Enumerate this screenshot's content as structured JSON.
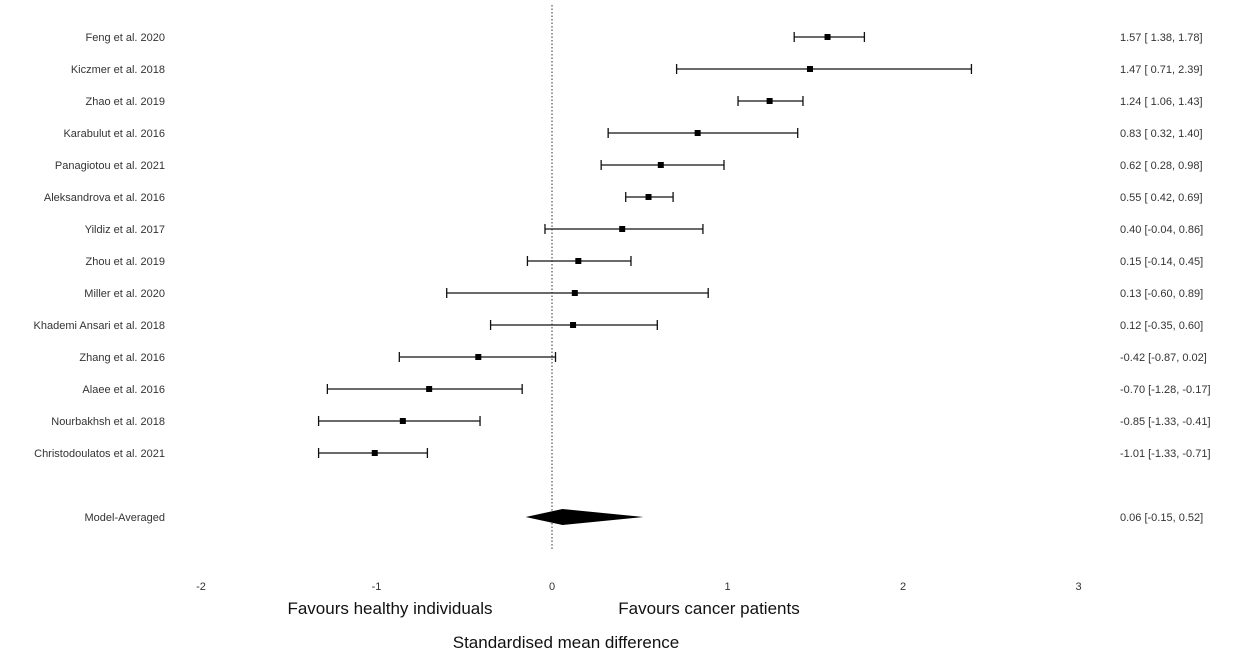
{
  "chart_data": {
    "type": "forest",
    "xlabel": "Standardised mean difference",
    "xlim": [
      -2,
      3
    ],
    "x_ticks": [
      -2,
      -1,
      0,
      1,
      2,
      3
    ],
    "reference_line": 0,
    "favour_left": "Favours healthy individuals",
    "favour_right": "Favours cancer patients",
    "studies": [
      {
        "name": "Feng et al. 2020",
        "estimate": 1.57,
        "lower": 1.38,
        "upper": 1.78,
        "ci_text": "1.57 [ 1.38,  1.78]"
      },
      {
        "name": "Kiczmer et al. 2018",
        "estimate": 1.47,
        "lower": 0.71,
        "upper": 2.39,
        "ci_text": "1.47 [ 0.71,  2.39]"
      },
      {
        "name": "Zhao et al. 2019",
        "estimate": 1.24,
        "lower": 1.06,
        "upper": 1.43,
        "ci_text": "1.24 [ 1.06,  1.43]"
      },
      {
        "name": "Karabulut et al. 2016",
        "estimate": 0.83,
        "lower": 0.32,
        "upper": 1.4,
        "ci_text": "0.83 [ 0.32,  1.40]"
      },
      {
        "name": "Panagiotou et al. 2021",
        "estimate": 0.62,
        "lower": 0.28,
        "upper": 0.98,
        "ci_text": "0.62 [ 0.28,  0.98]"
      },
      {
        "name": "Aleksandrova et al. 2016",
        "estimate": 0.55,
        "lower": 0.42,
        "upper": 0.69,
        "ci_text": "0.55 [ 0.42,  0.69]"
      },
      {
        "name": "Yildiz et al. 2017",
        "estimate": 0.4,
        "lower": -0.04,
        "upper": 0.86,
        "ci_text": "0.40 [-0.04,  0.86]"
      },
      {
        "name": "Zhou et al. 2019",
        "estimate": 0.15,
        "lower": -0.14,
        "upper": 0.45,
        "ci_text": "0.15 [-0.14,  0.45]"
      },
      {
        "name": "Miller et al. 2020",
        "estimate": 0.13,
        "lower": -0.6,
        "upper": 0.89,
        "ci_text": "0.13 [-0.60,  0.89]"
      },
      {
        "name": "Khademi Ansari et al. 2018",
        "estimate": 0.12,
        "lower": -0.35,
        "upper": 0.6,
        "ci_text": "0.12 [-0.35,  0.60]"
      },
      {
        "name": "Zhang et al. 2016",
        "estimate": -0.42,
        "lower": -0.87,
        "upper": 0.02,
        "ci_text": "-0.42 [-0.87,  0.02]"
      },
      {
        "name": "Alaee et al. 2016",
        "estimate": -0.7,
        "lower": -1.28,
        "upper": -0.17,
        "ci_text": "-0.70 [-1.28, -0.17]"
      },
      {
        "name": "Nourbakhsh et al. 2018",
        "estimate": -0.85,
        "lower": -1.33,
        "upper": -0.41,
        "ci_text": "-0.85 [-1.33, -0.41]"
      },
      {
        "name": "Christodoulatos et al. 2021",
        "estimate": -1.01,
        "lower": -1.33,
        "upper": -0.71,
        "ci_text": "-1.01 [-1.33, -0.71]"
      }
    ],
    "summary": {
      "name": "Model-Averaged",
      "estimate": 0.06,
      "lower": -0.15,
      "upper": 0.52,
      "ci_text": "0.06 [-0.15,  0.52]"
    }
  }
}
